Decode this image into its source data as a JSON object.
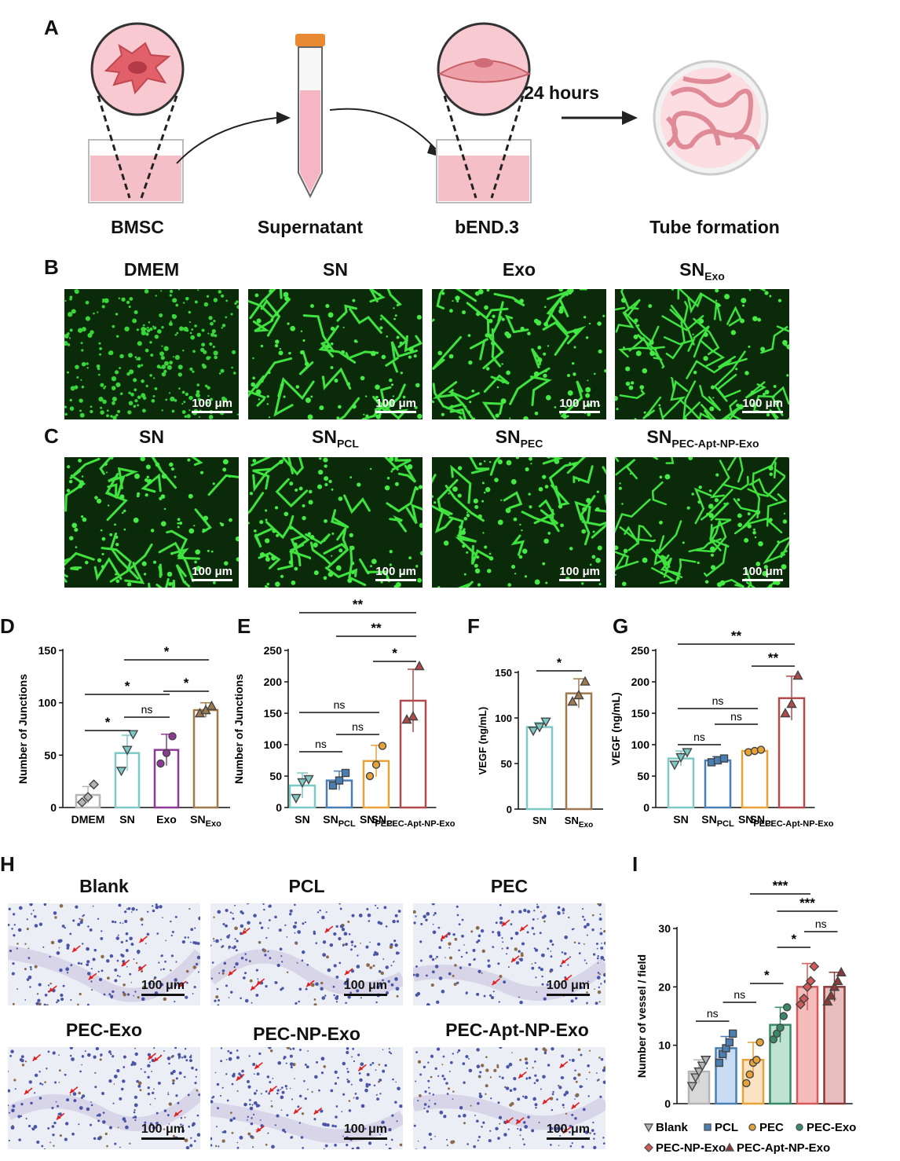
{
  "panel_labels": [
    "A",
    "B",
    "C",
    "D",
    "E",
    "F",
    "G",
    "H",
    "I"
  ],
  "panel_a": {
    "steps": [
      "BMSC",
      "Supernatant",
      "bEND.3",
      "Tube formation"
    ],
    "arrow_label": "24 hours"
  },
  "panel_b": {
    "titles": [
      {
        "main": "DMEM",
        "sub": ""
      },
      {
        "main": "SN",
        "sub": ""
      },
      {
        "main": "Exo",
        "sub": ""
      },
      {
        "main": "SN",
        "sub": "Exo"
      }
    ],
    "scale_bar": "100 μm"
  },
  "panel_c": {
    "titles": [
      {
        "main": "SN",
        "sub": ""
      },
      {
        "main": "SN",
        "sub": "PCL"
      },
      {
        "main": "SN",
        "sub": "PEC"
      },
      {
        "main": "SN",
        "sub": "PEC-Apt-NP-Exo"
      }
    ],
    "scale_bar": "100 μm"
  },
  "panel_h": {
    "titles": [
      "Blank",
      "PCL",
      "PEC",
      "PEC-Exo",
      "PEC-NP-Exo",
      "PEC-Apt-NP-Exo"
    ],
    "scale_bar": "100 μm"
  },
  "chart_data": [
    {
      "panel": "D",
      "type": "bar",
      "ylabel": "Number of Junctions",
      "ylim": [
        0,
        150
      ],
      "yticks": [
        0,
        50,
        100,
        150
      ],
      "categories": [
        {
          "main": "DMEM",
          "sub": ""
        },
        {
          "main": "SN",
          "sub": ""
        },
        {
          "main": "Exo",
          "sub": ""
        },
        {
          "main": "SN",
          "sub": "Exo"
        }
      ],
      "values": [
        12,
        52,
        55,
        93
      ],
      "errors": [
        8,
        17,
        15,
        7
      ],
      "points": [
        [
          5,
          10,
          22
        ],
        [
          35,
          55,
          70
        ],
        [
          42,
          52,
          68
        ],
        [
          90,
          93,
          97
        ]
      ],
      "colors": [
        "#b5b5b5",
        "#7cc9c6",
        "#8d3a96",
        "#a07a4e"
      ],
      "markers": [
        "diamond",
        "triangle-down",
        "circle",
        "triangle"
      ],
      "significance": [
        {
          "from": 0,
          "to": 1,
          "label": "*"
        },
        {
          "from": 1,
          "to": 2,
          "label": "ns"
        },
        {
          "from": 2,
          "to": 3,
          "label": "*"
        },
        {
          "from": 0,
          "to": 2,
          "label": "*"
        },
        {
          "from": 1,
          "to": 3,
          "label": "*"
        }
      ]
    },
    {
      "panel": "E",
      "type": "bar",
      "ylabel": "Number of Junctions",
      "ylim": [
        0,
        250
      ],
      "yticks": [
        0,
        50,
        100,
        150,
        200,
        250
      ],
      "categories": [
        {
          "main": "SN",
          "sub": ""
        },
        {
          "main": "SN",
          "sub": "PCL"
        },
        {
          "main": "SN",
          "sub": "PEC"
        },
        {
          "main": "SN",
          "sub": "PEC-Apt-NP-Exo"
        }
      ],
      "values": [
        35,
        43,
        74,
        170
      ],
      "errors": [
        20,
        15,
        25,
        50
      ],
      "points": [
        [
          15,
          40,
          45
        ],
        [
          35,
          43,
          55
        ],
        [
          50,
          68,
          98
        ],
        [
          140,
          145,
          225
        ]
      ],
      "colors": [
        "#7cc9c6",
        "#4a7fb5",
        "#e8a23a",
        "#b14a4a"
      ],
      "markers": [
        "triangle-down",
        "square",
        "circle",
        "triangle"
      ],
      "significance": [
        {
          "from": 0,
          "to": 1,
          "label": "ns"
        },
        {
          "from": 1,
          "to": 2,
          "label": "ns"
        },
        {
          "from": 2,
          "to": 3,
          "label": "*"
        },
        {
          "from": 0,
          "to": 2,
          "label": "ns"
        },
        {
          "from": 1,
          "to": 3,
          "label": "**"
        },
        {
          "from": 0,
          "to": 3,
          "label": "**"
        }
      ]
    },
    {
      "panel": "F",
      "type": "bar",
      "ylabel": "VEGF (ng/mL)",
      "ylim": [
        0,
        150
      ],
      "yticks": [
        0,
        50,
        100,
        150
      ],
      "categories": [
        {
          "main": "SN",
          "sub": ""
        },
        {
          "main": "SN",
          "sub": "Exo"
        }
      ],
      "values": [
        90,
        127
      ],
      "errors": [
        5,
        16
      ],
      "points": [
        [
          86,
          90,
          96
        ],
        [
          118,
          125,
          140
        ]
      ],
      "colors": [
        "#7cc9c6",
        "#a07a4e"
      ],
      "markers": [
        "triangle-down",
        "triangle"
      ],
      "significance": [
        {
          "from": 0,
          "to": 1,
          "label": "*"
        }
      ]
    },
    {
      "panel": "G",
      "type": "bar",
      "ylabel": "VEGF (ng/mL)",
      "ylim": [
        0,
        250
      ],
      "yticks": [
        0,
        50,
        100,
        150,
        200,
        250
      ],
      "categories": [
        {
          "main": "SN",
          "sub": ""
        },
        {
          "main": "SN",
          "sub": "PCL"
        },
        {
          "main": "SN",
          "sub": "PEC"
        },
        {
          "main": "SN",
          "sub": "PEC-Apt-NP-Exo"
        }
      ],
      "values": [
        78,
        75,
        90,
        174
      ],
      "errors": [
        12,
        6,
        3,
        35
      ],
      "points": [
        [
          68,
          80,
          88
        ],
        [
          72,
          75,
          78
        ],
        [
          88,
          90,
          92
        ],
        [
          150,
          165,
          210
        ]
      ],
      "colors": [
        "#7cc9c6",
        "#4a7fb5",
        "#e8a23a",
        "#b14a4a"
      ],
      "markers": [
        "triangle-down",
        "square",
        "circle",
        "triangle"
      ],
      "significance": [
        {
          "from": 0,
          "to": 1,
          "label": "ns"
        },
        {
          "from": 1,
          "to": 2,
          "label": "ns"
        },
        {
          "from": 2,
          "to": 3,
          "label": "**"
        },
        {
          "from": 0,
          "to": 2,
          "label": "ns"
        },
        {
          "from": 0,
          "to": 3,
          "label": "**"
        }
      ]
    },
    {
      "panel": "I",
      "type": "bar",
      "ylabel": "Number of vessel  / field",
      "ylim": [
        0,
        30
      ],
      "yticks": [
        0,
        10,
        20,
        30
      ],
      "categories": [
        "Blank",
        "PCL",
        "PEC",
        "PEC-Exo",
        "PEC-NP-Exo",
        "PEC-Apt-NP-Exo"
      ],
      "values": [
        5.5,
        9.5,
        7.5,
        13.5,
        20,
        20
      ],
      "errors": [
        2,
        2,
        3,
        3,
        4,
        2.5
      ],
      "points": [
        [
          3,
          4.5,
          5.5,
          6.5,
          7.5
        ],
        [
          7,
          8.5,
          9.5,
          10.5,
          12
        ],
        [
          3.5,
          5,
          7,
          7.5,
          10.5
        ],
        [
          11,
          12,
          13,
          15,
          16.5
        ],
        [
          17,
          18,
          20,
          21,
          23.5
        ],
        [
          17.5,
          18.5,
          20,
          21,
          22.5
        ]
      ],
      "colors": [
        "#b5b5b5",
        "#4a7fb5",
        "#e8a23a",
        "#3a8a6a",
        "#d65a5a",
        "#8b3a3a"
      ],
      "fills": [
        "#d9d9d9",
        "#c9dcf1",
        "#fbe2c2",
        "#bfe3d2",
        "#f5bcbc",
        "#e8bdbd"
      ],
      "markers": [
        "triangle-down",
        "square",
        "circle",
        "circle",
        "diamond",
        "triangle"
      ],
      "legend": [
        "Blank",
        "PCL",
        "PEC",
        "PEC-Exo",
        "PEC-NP-Exo",
        "PEC-Apt-NP-Exo"
      ],
      "significance": [
        {
          "from": 0,
          "to": 1,
          "label": "ns"
        },
        {
          "from": 1,
          "to": 2,
          "label": "ns"
        },
        {
          "from": 2,
          "to": 3,
          "label": "*"
        },
        {
          "from": 3,
          "to": 4,
          "label": "*"
        },
        {
          "from": 4,
          "to": 5,
          "label": "ns"
        },
        {
          "from": 3,
          "to": 5,
          "label": "***"
        },
        {
          "from": 2,
          "to": 4,
          "label": "***"
        }
      ]
    }
  ]
}
